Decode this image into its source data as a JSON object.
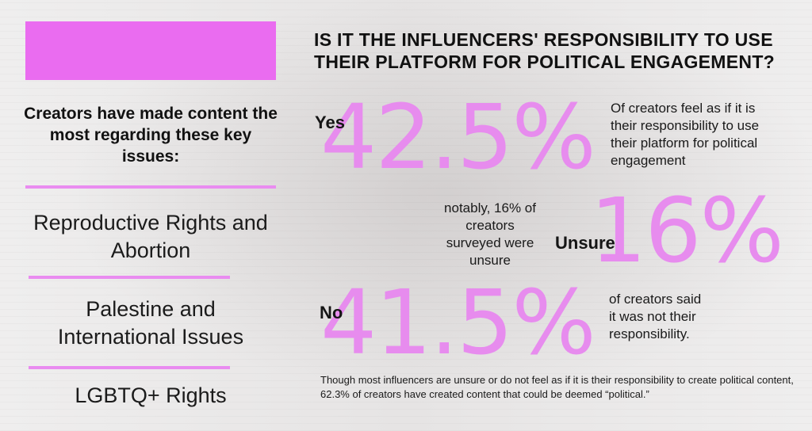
{
  "colors": {
    "accent": "#ea6cf0",
    "accent_light": "#e78cee",
    "text": "#111111"
  },
  "left": {
    "title": "Creators have made content the most regarding these key issues:",
    "issues": [
      "Reproductive Rights and Abortion",
      "Palestine and International Issues",
      "LGBTQ+ Rights"
    ]
  },
  "question": "IS IT THE INFLUENCERS' RESPONSIBILITY TO USE THEIR PLATFORM FOR POLITICAL ENGAGEMENT?",
  "stats": [
    {
      "label": "Yes",
      "value": "42.5%",
      "description": "Of creators feel as if it is their responsibility to use their platform for political engagement"
    },
    {
      "label": "Unsure",
      "value": "16%",
      "description": "notably, 16% of creators surveyed were unsure"
    },
    {
      "label": "No",
      "value": "41.5%",
      "description": "of creators said it was not their responsibility."
    }
  ],
  "footer": "Though most influencers are unsure or do not feel as if it is their responsibility to create political content, 62.3% of creators have created content that could be deemed “political.”"
}
